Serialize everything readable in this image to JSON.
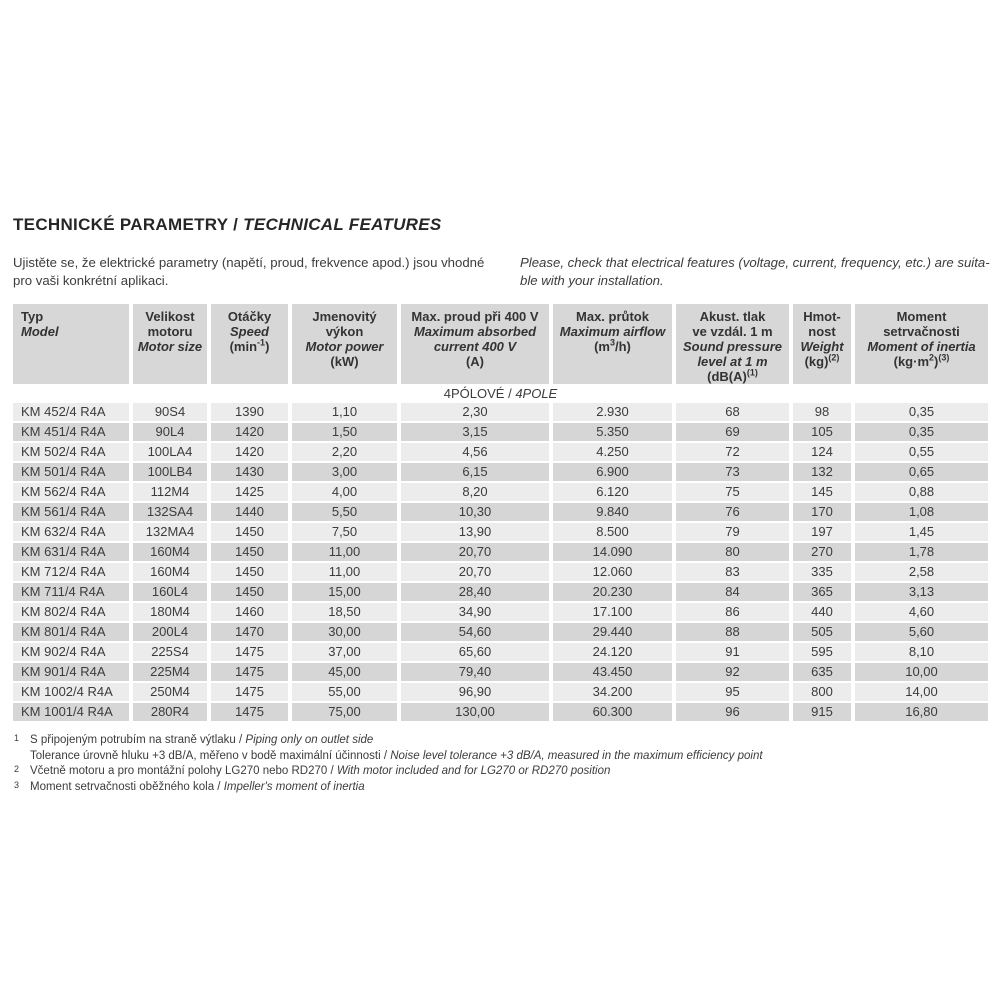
{
  "colors": {
    "header_bg": "#d7d7d7",
    "row_light_bg": "#ececec",
    "row_dark_bg": "#d6d6d6",
    "text": "#3c3c3c"
  },
  "page": {
    "title": {
      "cs": "TECHNICKÉ PARAMETRY",
      "sep": " / ",
      "en": "TECHNICAL FEATURES"
    },
    "intro": {
      "cs": "Ujistěte se, že elektrické parametry (napětí, proud, frekvence apod.) jsou vhodné pro vaši konkrétní aplikaci.",
      "en": "Please, check that electrical features (voltage, current, frequency, etc.) are suita­ble with your installation."
    }
  },
  "table": {
    "columns": [
      {
        "id": "model",
        "cs": [
          "Typ"
        ],
        "en": [
          "Model"
        ],
        "unit": []
      },
      {
        "id": "motor-size",
        "cs": [
          "Velikost",
          "motoru"
        ],
        "en": [
          "Motor size"
        ],
        "unit": []
      },
      {
        "id": "speed",
        "cs": [
          "Otáčky"
        ],
        "en": [
          "Speed"
        ],
        "unit": [
          {
            "t": "(min"
          },
          {
            "t": "-1",
            "sup": true
          },
          {
            "t": ")"
          }
        ]
      },
      {
        "id": "motor-power",
        "cs": [
          "Jmenovitý",
          "výkon"
        ],
        "en": [
          "Motor power"
        ],
        "unit": [
          {
            "t": "(kW)"
          }
        ]
      },
      {
        "id": "max-current",
        "cs": [
          "Max. proud při 400 V"
        ],
        "en": [
          "Maximum absorbed",
          "current 400 V"
        ],
        "unit": [
          {
            "t": "(A)"
          }
        ]
      },
      {
        "id": "max-airflow",
        "cs": [
          "Max. průtok"
        ],
        "en": [
          "Maximum airflow"
        ],
        "unit": [
          {
            "t": "(m"
          },
          {
            "t": "3",
            "sup": true
          },
          {
            "t": "/h)"
          }
        ]
      },
      {
        "id": "sound-pressure",
        "cs": [
          "Akust. tlak",
          "ve vzdál. 1 m"
        ],
        "en": [
          "Sound pressure",
          "level at 1 m"
        ],
        "unit": [
          {
            "t": "(dB(A)"
          },
          {
            "t": "(1)",
            "sup": true
          }
        ]
      },
      {
        "id": "weight",
        "cs": [
          "Hmot-",
          "nost"
        ],
        "en": [
          "Weight"
        ],
        "unit": [
          {
            "t": "(kg)"
          },
          {
            "t": "(2)",
            "sup": true
          }
        ]
      },
      {
        "id": "moment-of-inertia",
        "cs": [
          "Moment",
          "setrvačnosti"
        ],
        "en": [
          "Moment of inertia"
        ],
        "unit": [
          {
            "t": "(kg·m"
          },
          {
            "t": "2",
            "sup": true
          },
          {
            "t": ")"
          },
          {
            "t": "(3)",
            "sup": true
          }
        ]
      }
    ],
    "section": {
      "cs": "4PÓLOVÉ",
      "sep": " / ",
      "en": "4POLE"
    },
    "rows": [
      [
        "KM 452/4 R4A",
        "90S4",
        "1390",
        "1,10",
        "2,30",
        "2.930",
        "68",
        "98",
        "0,35"
      ],
      [
        "KM 451/4 R4A",
        "90L4",
        "1420",
        "1,50",
        "3,15",
        "5.350",
        "69",
        "105",
        "0,35"
      ],
      [
        "KM 502/4 R4A",
        "100LA4",
        "1420",
        "2,20",
        "4,56",
        "4.250",
        "72",
        "124",
        "0,55"
      ],
      [
        "KM 501/4 R4A",
        "100LB4",
        "1430",
        "3,00",
        "6,15",
        "6.900",
        "73",
        "132",
        "0,65"
      ],
      [
        "KM 562/4 R4A",
        "112M4",
        "1425",
        "4,00",
        "8,20",
        "6.120",
        "75",
        "145",
        "0,88"
      ],
      [
        "KM 561/4 R4A",
        "132SA4",
        "1440",
        "5,50",
        "10,30",
        "9.840",
        "76",
        "170",
        "1,08"
      ],
      [
        "KM 632/4 R4A",
        "132MA4",
        "1450",
        "7,50",
        "13,90",
        "8.500",
        "79",
        "197",
        "1,45"
      ],
      [
        "KM 631/4 R4A",
        "160M4",
        "1450",
        "11,00",
        "20,70",
        "14.090",
        "80",
        "270",
        "1,78"
      ],
      [
        "KM 712/4 R4A",
        "160M4",
        "1450",
        "11,00",
        "20,70",
        "12.060",
        "83",
        "335",
        "2,58"
      ],
      [
        "KM 711/4 R4A",
        "160L4",
        "1450",
        "15,00",
        "28,40",
        "20.230",
        "84",
        "365",
        "3,13"
      ],
      [
        "KM 802/4 R4A",
        "180M4",
        "1460",
        "18,50",
        "34,90",
        "17.100",
        "86",
        "440",
        "4,60"
      ],
      [
        "KM 801/4 R4A",
        "200L4",
        "1470",
        "30,00",
        "54,60",
        "29.440",
        "88",
        "505",
        "5,60"
      ],
      [
        "KM 902/4 R4A",
        "225S4",
        "1475",
        "37,00",
        "65,60",
        "24.120",
        "91",
        "595",
        "8,10"
      ],
      [
        "KM 901/4 R4A",
        "225M4",
        "1475",
        "45,00",
        "79,40",
        "43.450",
        "92",
        "635",
        "10,00"
      ],
      [
        "KM 1002/4 R4A",
        "250M4",
        "1475",
        "55,00",
        "96,90",
        "34.200",
        "95",
        "800",
        "14,00"
      ],
      [
        "KM 1001/4 R4A",
        "280R4",
        "1475",
        "75,00",
        "130,00",
        "60.300",
        "96",
        "915",
        "16,80"
      ]
    ]
  },
  "footnotes": [
    {
      "marker": "1",
      "cs": "S připojeným potrubím na straně výtlaku",
      "en": "Piping only on outlet side"
    },
    {
      "marker": "",
      "cs": "Tolerance úrovně hluku +3 dB/A, měřeno v bodě maximální účinnosti",
      "en": "Noise level tolerance +3 dB/A, measured in the maximum efficiency point"
    },
    {
      "marker": "2",
      "cs": "Včetně motoru a pro montážní polohy LG270 nebo RD270",
      "en": "With motor included and for LG270 or RD270 position"
    },
    {
      "marker": "3",
      "cs": "Moment setrvačnosti oběžného kola",
      "en": "Impeller's moment of inertia"
    }
  ]
}
